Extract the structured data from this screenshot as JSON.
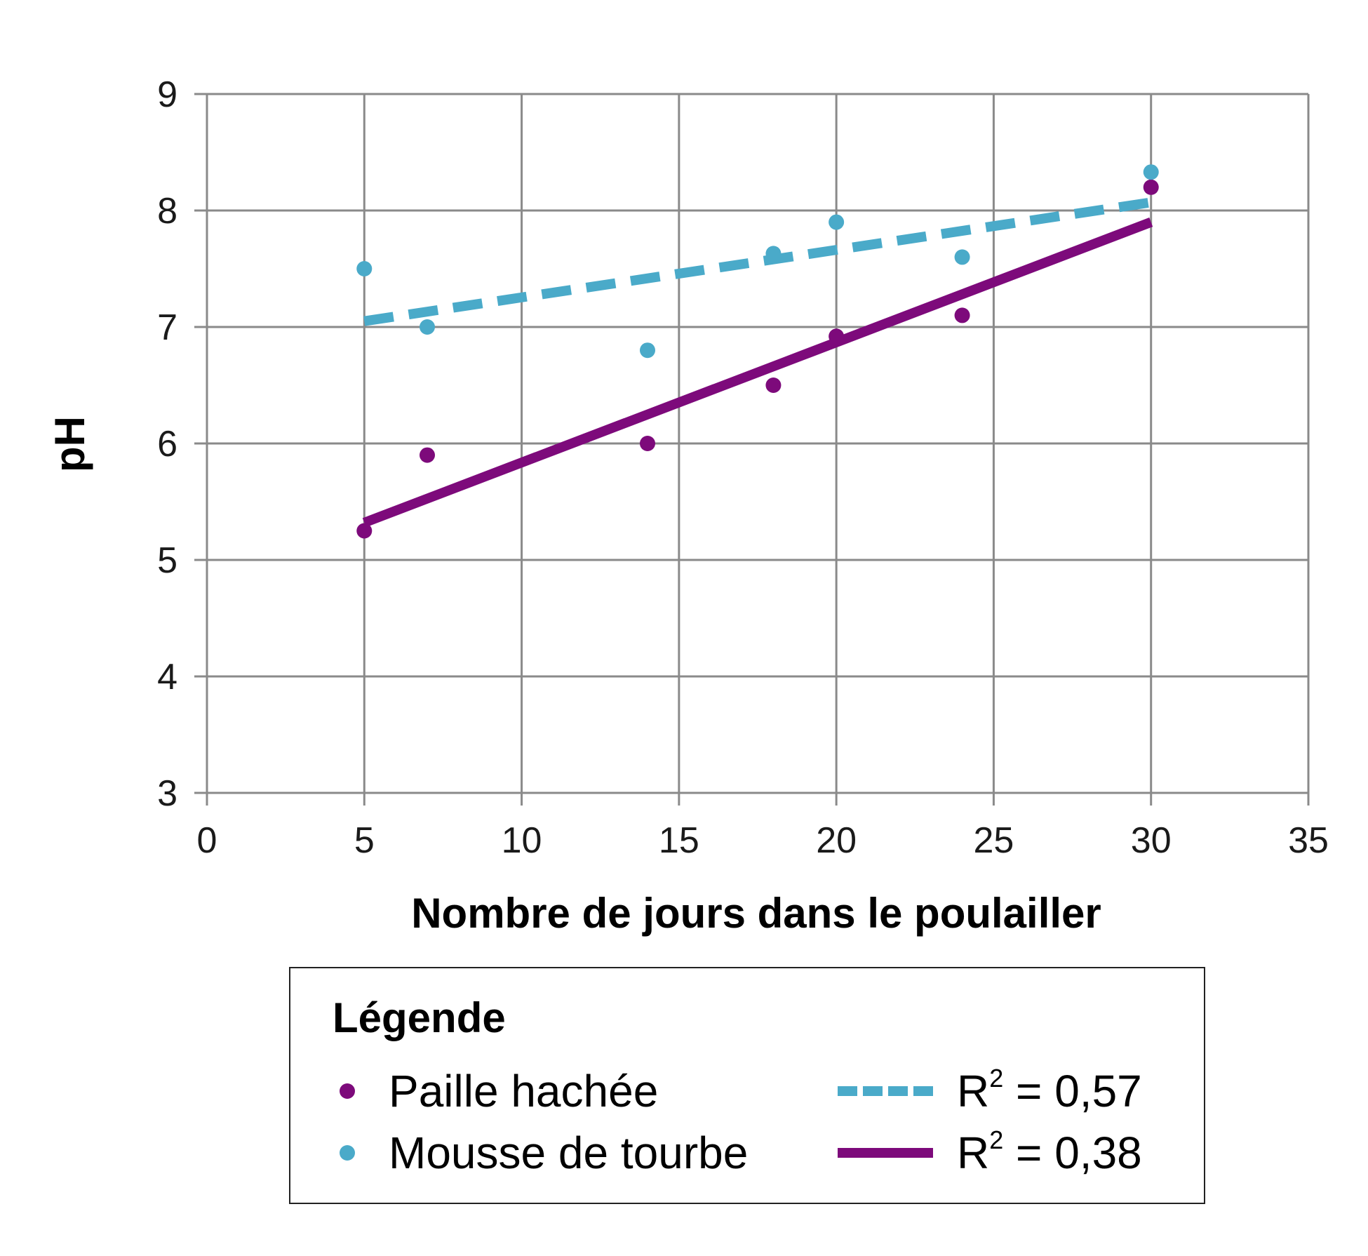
{
  "chart_data": {
    "type": "scatter",
    "title": "",
    "xlabel": "Nombre de jours dans le poulailler",
    "ylabel": "pH",
    "xlim": [
      0,
      35
    ],
    "ylim": [
      3,
      9
    ],
    "x_ticks": [
      "0",
      "5",
      "10",
      "15",
      "20",
      "25",
      "30",
      "35"
    ],
    "y_ticks": [
      "3",
      "4",
      "5",
      "6",
      "7",
      "8",
      "9"
    ],
    "grid": true,
    "series": [
      {
        "name": "Paille hachée",
        "color": "#7d0a7b",
        "points": [
          [
            5,
            5.25
          ],
          [
            7,
            5.9
          ],
          [
            14,
            6.0
          ],
          [
            18,
            6.5
          ],
          [
            20,
            6.92
          ],
          [
            24,
            7.1
          ],
          [
            30,
            8.2
          ]
        ],
        "trendline": {
          "x": [
            5,
            30
          ],
          "y": [
            5.32,
            7.9
          ],
          "style": "solid",
          "label_prefix": "R",
          "label_sup": "2",
          "label_suffix": " = 0,38"
        }
      },
      {
        "name": "Mousse de tourbe",
        "color": "#4aaac9",
        "points": [
          [
            5,
            7.5
          ],
          [
            7,
            7.0
          ],
          [
            14,
            6.8
          ],
          [
            18,
            7.63
          ],
          [
            20,
            7.9
          ],
          [
            24,
            7.6
          ],
          [
            30,
            8.33
          ]
        ],
        "trendline": {
          "x": [
            5,
            30
          ],
          "y": [
            7.05,
            8.07
          ],
          "style": "dashed",
          "label_prefix": "R",
          "label_sup": "2",
          "label_suffix": " = 0,57"
        }
      }
    ],
    "legend": {
      "title": "Légende",
      "position": "bottom"
    }
  }
}
